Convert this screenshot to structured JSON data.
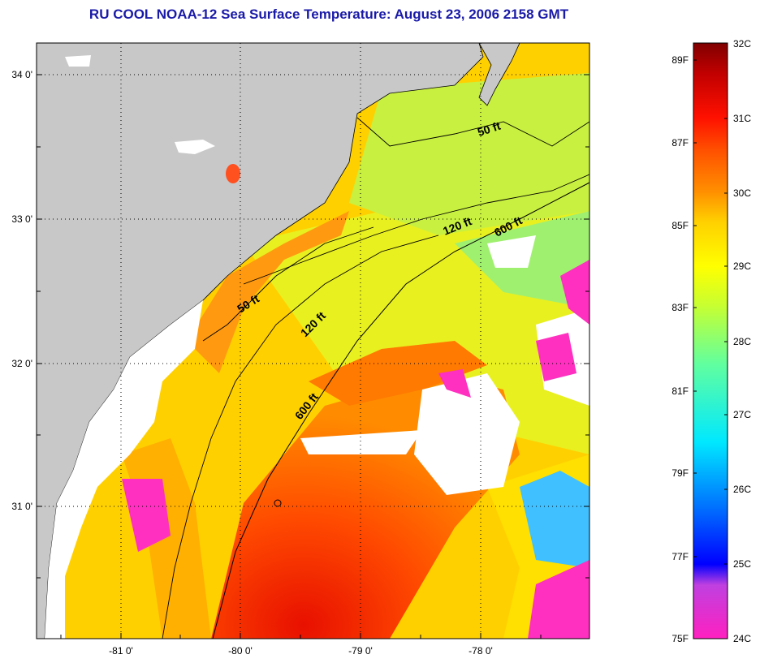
{
  "title": "RU COOL  NOAA-12  Sea Surface Temperature:  August 23, 2006 2158 GMT",
  "map": {
    "lat_labels": [
      "34 0'",
      "33 0'",
      "32 0'",
      "31 0'"
    ],
    "lon_labels": [
      "-81 0'",
      "-80 0'",
      "-79 0'",
      "-78 0'"
    ],
    "isobath_labels": [
      "50 ft",
      "120 ft",
      "600 ft",
      "50 ft",
      "120 ft",
      "600 ft"
    ]
  },
  "colorbar": {
    "celsius_labels": [
      "32C",
      "31C",
      "30C",
      "29C",
      "28C",
      "27C",
      "26C",
      "25C",
      "24C"
    ],
    "fahrenheit_labels": [
      "89F",
      "87F",
      "85F",
      "83F",
      "81F",
      "79F",
      "77F",
      "75F"
    ]
  },
  "colors": {
    "land": "#c8c8c8",
    "cloud": "#ffffff",
    "title": "#1a1aa8"
  }
}
